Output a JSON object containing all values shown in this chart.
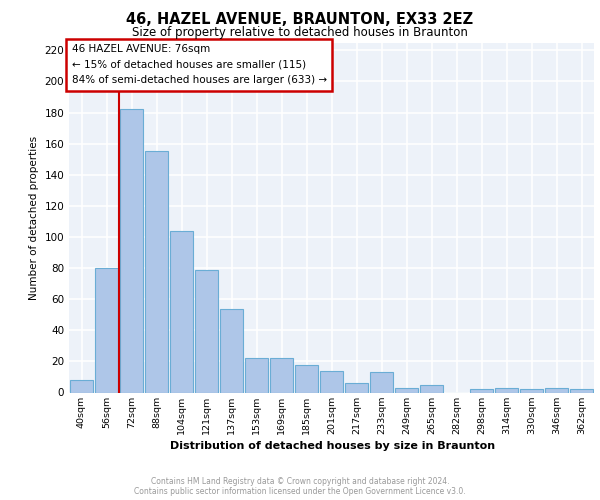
{
  "title": "46, HAZEL AVENUE, BRAUNTON, EX33 2EZ",
  "subtitle": "Size of property relative to detached houses in Braunton",
  "xlabel": "Distribution of detached houses by size in Braunton",
  "ylabel": "Number of detached properties",
  "bar_labels": [
    "40sqm",
    "56sqm",
    "72sqm",
    "88sqm",
    "104sqm",
    "121sqm",
    "137sqm",
    "153sqm",
    "169sqm",
    "185sqm",
    "201sqm",
    "217sqm",
    "233sqm",
    "249sqm",
    "265sqm",
    "282sqm",
    "298sqm",
    "314sqm",
    "330sqm",
    "346sqm",
    "362sqm"
  ],
  "bar_values": [
    8,
    80,
    182,
    155,
    104,
    79,
    54,
    22,
    22,
    18,
    14,
    6,
    13,
    3,
    5,
    0,
    2,
    3,
    2,
    3,
    2
  ],
  "bar_color": "#aec6e8",
  "bar_edgecolor": "#6aadd5",
  "vline_color": "#cc0000",
  "vline_pos": 1.5,
  "annotation_text": "46 HAZEL AVENUE: 76sqm\n← 15% of detached houses are smaller (115)\n84% of semi-detached houses are larger (633) →",
  "annotation_box_facecolor": "#ffffff",
  "annotation_box_edgecolor": "#cc0000",
  "ylim": [
    0,
    225
  ],
  "yticks": [
    0,
    20,
    40,
    60,
    80,
    100,
    120,
    140,
    160,
    180,
    200,
    220
  ],
  "bg_color": "#edf2f9",
  "grid_color": "#ffffff",
  "footer_line1": "Contains HM Land Registry data © Crown copyright and database right 2024.",
  "footer_line2": "Contains public sector information licensed under the Open Government Licence v3.0."
}
